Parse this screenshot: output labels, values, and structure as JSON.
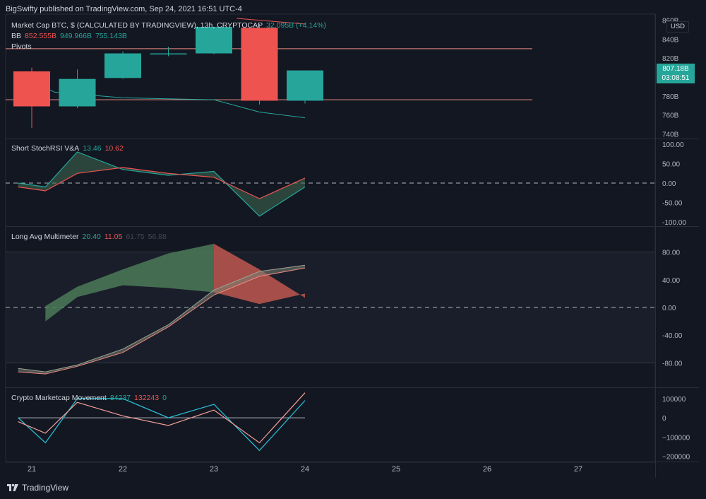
{
  "header": {
    "publisher": "BigSwifty published on TradingView.com, Sep 24, 2021 16:51 UTC-4"
  },
  "footer": {
    "brand": "TradingView"
  },
  "main_pane": {
    "title": "Market Cap BTC, $ (CALCULATED BY TRADINGVIEW), 13h, CRYPTOCAP",
    "change": "32.095B (+4.14%)",
    "bb_label": "BB",
    "bb_values": [
      "852.555B",
      "949.966B",
      "755.143B"
    ],
    "pivots_label": "Pivots",
    "currency": "USD",
    "last_price": "807.18B",
    "countdown": "03:08:51",
    "y_ticks": [
      "860B",
      "840B",
      "820B",
      "800B",
      "780B",
      "760B",
      "740B"
    ]
  },
  "stoch_pane": {
    "title": "Short StochRSI V&A",
    "values": [
      "13.46",
      "10.62"
    ],
    "y_ticks": [
      "100.00",
      "50.00",
      "0.00",
      "-50.00",
      "-100.00"
    ]
  },
  "multimeter_pane": {
    "title": "Long Avg Multimeter",
    "values": [
      "20.40",
      "11.05",
      "61.75",
      "56.88"
    ],
    "y_ticks": [
      "80.00",
      "40.00",
      "0.00",
      "-40.00",
      "-80.00"
    ]
  },
  "movement_pane": {
    "title": "Crypto Marketcap Movement",
    "values": [
      "84237",
      "132243",
      "0"
    ],
    "y_ticks": [
      "100000",
      "0",
      "−100000",
      "−200000"
    ]
  },
  "x_axis": {
    "ticks": [
      "21",
      "22",
      "23",
      "24",
      "25",
      "26",
      "27"
    ]
  },
  "colors": {
    "up": "#26a69a",
    "down": "#ef5350",
    "background": "#131722",
    "grid": "#2a2e39",
    "text": "#d1d4dc",
    "muted": "#787b86"
  },
  "chart_data": [
    {
      "type": "candlestick",
      "title": "Market Cap BTC, $ (CALCULATED BY TRADINGVIEW), 13h, CRYPTOCAP",
      "unit": "B USD",
      "ylim": [
        735,
        865
      ],
      "candles": [
        {
          "x": 0,
          "open": 806,
          "high": 810,
          "low": 746,
          "close": 769
        },
        {
          "x": 1,
          "open": 769,
          "high": 808,
          "low": 767,
          "close": 798
        },
        {
          "x": 2,
          "open": 799,
          "high": 827,
          "low": 798,
          "close": 825
        },
        {
          "x": 3,
          "open": 825,
          "high": 832,
          "low": 822,
          "close": 825
        },
        {
          "x": 4,
          "open": 825,
          "high": 853,
          "low": 824,
          "close": 853
        },
        {
          "x": 5,
          "open": 852,
          "high": 856,
          "low": 771,
          "close": 775
        },
        {
          "x": 6,
          "open": 775,
          "high": 807,
          "low": 772,
          "close": 807
        }
      ],
      "pivot_levels": [
        830,
        776
      ],
      "bb_lower": [
        [
          -0.3,
          803
        ],
        [
          0.5,
          784
        ],
        [
          2,
          778
        ],
        [
          4,
          776
        ],
        [
          5,
          763
        ],
        [
          6,
          757
        ]
      ],
      "bb_upper": [
        [
          4.5,
          862
        ],
        [
          6,
          856
        ]
      ]
    },
    {
      "type": "line",
      "title": "Short StochRSI V&A",
      "ylim": [
        -100,
        100
      ],
      "series": [
        {
          "values": [
            [
              -0.3,
              0
            ],
            [
              0.3,
              -10
            ],
            [
              1,
              80
            ],
            [
              2,
              35
            ],
            [
              3,
              20
            ],
            [
              4,
              30
            ],
            [
              5,
              -85
            ],
            [
              6,
              -10
            ]
          ]
        },
        {
          "values": [
            [
              -0.3,
              -10
            ],
            [
              0.3,
              -20
            ],
            [
              1,
              25
            ],
            [
              2,
              40
            ],
            [
              3,
              25
            ],
            [
              4,
              15
            ],
            [
              5,
              -40
            ],
            [
              6,
              13
            ]
          ]
        }
      ]
    },
    {
      "type": "area",
      "title": "Long Avg Multimeter",
      "ylim": [
        -100,
        100
      ],
      "series": [
        {
          "values": [
            [
              0.3,
              2
            ],
            [
              1,
              30
            ],
            [
              2,
              55
            ],
            [
              3,
              78
            ],
            [
              4,
              92
            ],
            [
              5,
              55
            ],
            [
              6,
              14
            ]
          ]
        },
        {
          "values": [
            [
              0.3,
              -20
            ],
            [
              1,
              15
            ],
            [
              2,
              32
            ],
            [
              3,
              28
            ],
            [
              4,
              22
            ],
            [
              5,
              5
            ],
            [
              6,
              20
            ]
          ]
        },
        {
          "values": [
            [
              -0.3,
              -88
            ],
            [
              0.3,
              -93
            ],
            [
              1,
              -83
            ],
            [
              2,
              -60
            ],
            [
              3,
              -25
            ],
            [
              4,
              25
            ],
            [
              5,
              52
            ],
            [
              6,
              61
            ]
          ]
        },
        {
          "values": [
            [
              -0.3,
              -93
            ],
            [
              0.3,
              -96
            ],
            [
              1,
              -85
            ],
            [
              2,
              -65
            ],
            [
              3,
              -28
            ],
            [
              4,
              18
            ],
            [
              5,
              45
            ],
            [
              6,
              57
            ]
          ]
        }
      ]
    },
    {
      "type": "line",
      "title": "Crypto Marketcap Movement",
      "ylim": [
        -220000,
        140000
      ],
      "series": [
        {
          "values": [
            [
              -0.3,
              0
            ],
            [
              0.3,
              -130000
            ],
            [
              1,
              100000
            ],
            [
              2,
              100000
            ],
            [
              3,
              0
            ],
            [
              4,
              70000
            ],
            [
              5,
              -170000
            ],
            [
              6,
              90000
            ]
          ]
        },
        {
          "values": [
            [
              -0.3,
              -20000
            ],
            [
              0.3,
              -80000
            ],
            [
              1,
              80000
            ],
            [
              2,
              10000
            ],
            [
              3,
              -40000
            ],
            [
              4,
              40000
            ],
            [
              5,
              -130000
            ],
            [
              6,
              130000
            ]
          ]
        },
        {
          "values": [
            [
              -0.3,
              0
            ],
            [
              6,
              0
            ]
          ]
        }
      ]
    }
  ]
}
